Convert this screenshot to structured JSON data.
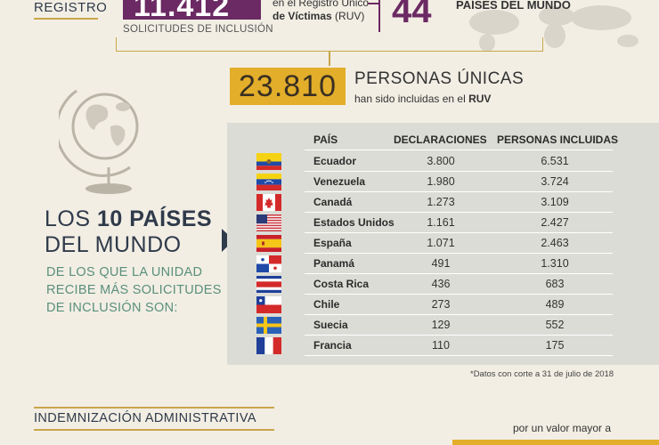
{
  "top": {
    "registro_label": "REGISTRO",
    "solicitudes_number": "11.412",
    "solicitudes_label": "SOLICITUDES DE INCLUSIÓN",
    "ruv_line1": "en el Registro Único",
    "ruv_line2_bold": "de Víctimas",
    "ruv_line2_rest": " (RUV)",
    "countries_number": "44",
    "countries_label": "PAÍSES DEL MUNDO"
  },
  "summary": {
    "unique_persons_number": "23.810",
    "unique_persons_label": "PERSONAS ÚNICAS",
    "included_text": "han sido incluidas en el ",
    "included_bold": "RUV"
  },
  "heading": {
    "line1_pre": "LOS ",
    "line1_bold": "10 PAÍSES",
    "line2": "DEL MUNDO",
    "subheading": "DE LOS QUE LA UNIDAD RECIBE MÁS SOLICITUDES DE INCLUSIÓN SON:"
  },
  "table": {
    "headers": {
      "country": "PAÍS",
      "declarations": "DECLARACIONES",
      "persons": "PERSONAS INCLUIDAS"
    },
    "rows": [
      {
        "country": "Ecuador",
        "declarations": "3.800",
        "persons": "6.531",
        "flag": "ecuador-flag"
      },
      {
        "country": "Venezuela",
        "declarations": "1.980",
        "persons": "3.724",
        "flag": "venezuela-flag"
      },
      {
        "country": "Canadá",
        "declarations": "1.273",
        "persons": "3.109",
        "flag": "canada-flag"
      },
      {
        "country": "Estados Unidos",
        "declarations": "1.161",
        "persons": "2.427",
        "flag": "usa-flag"
      },
      {
        "country": "España",
        "declarations": "1.071",
        "persons": "2.463",
        "flag": "spain-flag"
      },
      {
        "country": "Panamá",
        "declarations": "491",
        "persons": "1.310",
        "flag": "panama-flag"
      },
      {
        "country": "Costa Rica",
        "declarations": "436",
        "persons": "683",
        "flag": "costa-rica-flag"
      },
      {
        "country": "Chile",
        "declarations": "273",
        "persons": "489",
        "flag": "chile-flag"
      },
      {
        "country": "Suecia",
        "declarations": "129",
        "persons": "552",
        "flag": "sweden-flag"
      },
      {
        "country": "Francia",
        "declarations": "110",
        "persons": "175",
        "flag": "france-flag"
      }
    ],
    "footnote": "*Datos con corte a 31 de julio de 2018"
  },
  "bottom": {
    "indemnizacion_label": "INDEMNIZACIÓN ADMINISTRATIVA",
    "valor_mayor": "por un valor mayor a"
  },
  "colors": {
    "purple": "#6b2a63",
    "gold": "#e3ae2a",
    "teal": "#5a8f7b",
    "navy": "#2f3a4a"
  }
}
